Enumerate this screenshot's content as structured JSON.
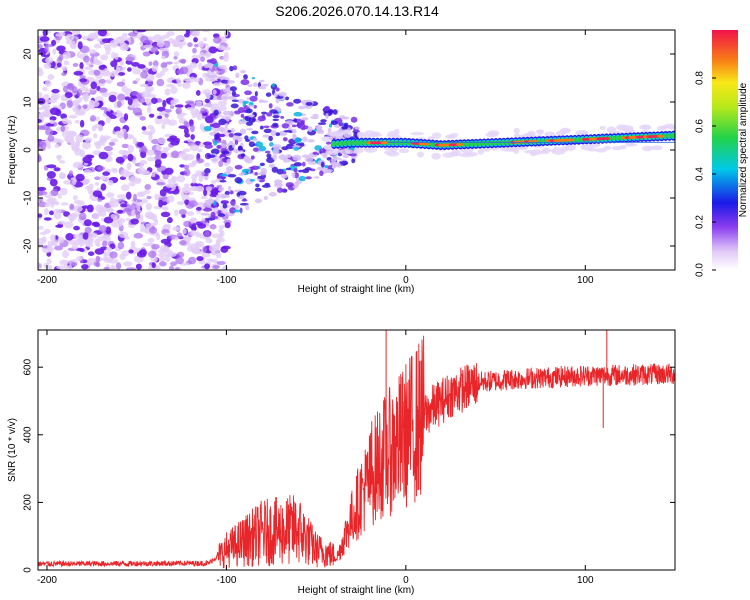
{
  "figure": {
    "title": "S206.2026.070.14.13.R14"
  },
  "chart_data": [
    {
      "type": "heatmap",
      "xlabel": "Height of straight line (km)",
      "ylabel": "Frequency (Hz)",
      "xlim": [
        -205,
        150
      ],
      "ylim": [
        -25,
        25
      ],
      "xticks": [
        -200,
        -100,
        0,
        100
      ],
      "yticks": [
        -20,
        -10,
        0,
        10,
        20
      ],
      "colorbar": {
        "label": "Normalized spectral amplitude",
        "range": [
          0,
          1
        ],
        "ticks": [
          0.0,
          0.2,
          0.4,
          0.6,
          0.8
        ],
        "tick_labels": [
          "0.0",
          "0.2",
          "0.4",
          "0.6",
          "0.8"
        ]
      },
      "description_points": {
        "noise_region_x": [
          -205,
          -105
        ],
        "carrier_center_hz": [
          {
            "x": -50,
            "y": 1.0
          },
          {
            "x": -30,
            "y": 1.5
          },
          {
            "x": 0,
            "y": 1.5
          },
          {
            "x": 20,
            "y": 1.0
          },
          {
            "x": 60,
            "y": 1.6
          },
          {
            "x": 100,
            "y": 2.2
          },
          {
            "x": 150,
            "y": 3.0
          }
        ]
      }
    },
    {
      "type": "line",
      "xlabel": "Height of straight line (km)",
      "ylabel": "SNR (10 * v/v)",
      "xlim": [
        -205,
        150
      ],
      "ylim": [
        0,
        710
      ],
      "xticks": [
        -200,
        -100,
        0,
        100
      ],
      "yticks": [
        0,
        200,
        400,
        600
      ],
      "color": "#e8262a",
      "envelope": [
        {
          "x": -205,
          "y": 18
        },
        {
          "x": -110,
          "y": 20
        },
        {
          "x": -100,
          "y": 60
        },
        {
          "x": -80,
          "y": 110
        },
        {
          "x": -60,
          "y": 120
        },
        {
          "x": -50,
          "y": 60
        },
        {
          "x": -38,
          "y": 40
        },
        {
          "x": -32,
          "y": 130
        },
        {
          "x": -25,
          "y": 220
        },
        {
          "x": -15,
          "y": 320
        },
        {
          "x": -5,
          "y": 370
        },
        {
          "x": 5,
          "y": 430
        },
        {
          "x": 15,
          "y": 480
        },
        {
          "x": 25,
          "y": 520
        },
        {
          "x": 40,
          "y": 555
        },
        {
          "x": 60,
          "y": 565
        },
        {
          "x": 100,
          "y": 575
        },
        {
          "x": 150,
          "y": 580
        }
      ],
      "spikes": [
        {
          "x": -11,
          "y": 710
        },
        {
          "x": -19,
          "y": 440
        },
        {
          "x": 112,
          "y": 710
        },
        {
          "x": 110,
          "y": 420
        }
      ]
    }
  ]
}
